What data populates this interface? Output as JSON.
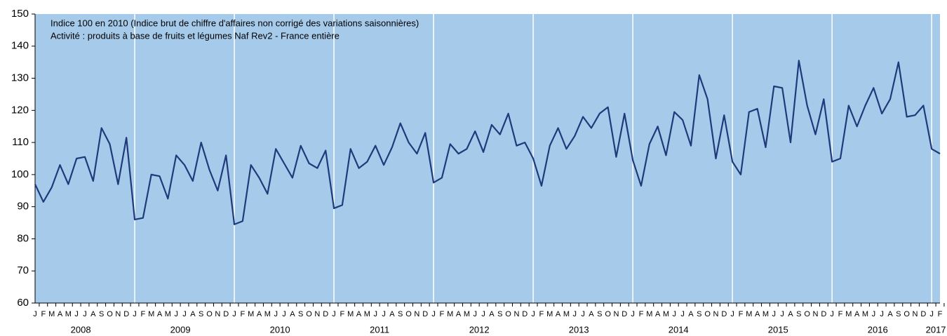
{
  "chart_data": {
    "type": "line",
    "annotations": [
      "Indice 100 en 2010 (Indice brut de chiffre d'affaires non corrigé des variations saisonnières)",
      "Activité : produits à base de fruits et légumes Naf Rev2 - France entière"
    ],
    "categories": [
      "J",
      "F",
      "M",
      "A",
      "M",
      "J",
      "J",
      "A",
      "S",
      "O",
      "N",
      "D",
      "J",
      "F",
      "M",
      "A",
      "M",
      "J",
      "J",
      "A",
      "S",
      "O",
      "N",
      "D",
      "J",
      "F",
      "M",
      "A",
      "M",
      "J",
      "J",
      "A",
      "S",
      "O",
      "N",
      "D",
      "J",
      "F",
      "M",
      "A",
      "M",
      "J",
      "J",
      "A",
      "S",
      "O",
      "N",
      "D",
      "J",
      "F",
      "M",
      "A",
      "M",
      "J",
      "J",
      "A",
      "S",
      "O",
      "N",
      "D",
      "J",
      "F",
      "M",
      "A",
      "M",
      "J",
      "J",
      "A",
      "S",
      "O",
      "N",
      "D",
      "J",
      "F",
      "M",
      "A",
      "M",
      "J",
      "J",
      "A",
      "S",
      "O",
      "N",
      "D",
      "J",
      "F",
      "M",
      "A",
      "M",
      "J",
      "J",
      "A",
      "S",
      "O",
      "N",
      "D",
      "J",
      "F",
      "M",
      "A",
      "M",
      "J",
      "J",
      "A",
      "S",
      "O",
      "N",
      "D",
      "J",
      "F"
    ],
    "years": [
      "2008",
      "2009",
      "2010",
      "2011",
      "2012",
      "2013",
      "2014",
      "2015",
      "2016",
      "2017"
    ],
    "series": [
      {
        "color": "#1f3a7a",
        "values": [
          97,
          91.5,
          96,
          103,
          97,
          105,
          105.5,
          98,
          114.5,
          109.5,
          97,
          111.5,
          86,
          86.5,
          100,
          99.5,
          92.5,
          106,
          103,
          98,
          110,
          101.5,
          95,
          106,
          84.5,
          85.5,
          103,
          99,
          94,
          108,
          103.5,
          99,
          109,
          103.5,
          102,
          107.5,
          89.5,
          90.5,
          108,
          102,
          104,
          109,
          103,
          108.5,
          116,
          110,
          106.5,
          113,
          97.5,
          99,
          109.5,
          106.5,
          108,
          113.5,
          107,
          115.5,
          112.5,
          119,
          109,
          110,
          105,
          96.5,
          109,
          114.5,
          108,
          112,
          118,
          114.5,
          119,
          121,
          105.5,
          119,
          104.5,
          96.5,
          109.5,
          115,
          106,
          119.5,
          117,
          109,
          131,
          123.5,
          105,
          118.5,
          104,
          100,
          119.5,
          120.5,
          108.5,
          127.5,
          127,
          110,
          135.5,
          121.5,
          112.5,
          123.5,
          104,
          105,
          121.5,
          115,
          121.5,
          127,
          119,
          123.5,
          135,
          118,
          118.5,
          121.5,
          108,
          106.5
        ]
      }
    ],
    "ylim": [
      60,
      150
    ],
    "yticks": [
      60,
      70,
      80,
      90,
      100,
      110,
      120,
      130,
      140,
      150
    ],
    "background": "#a6cbea",
    "grid": "x"
  }
}
